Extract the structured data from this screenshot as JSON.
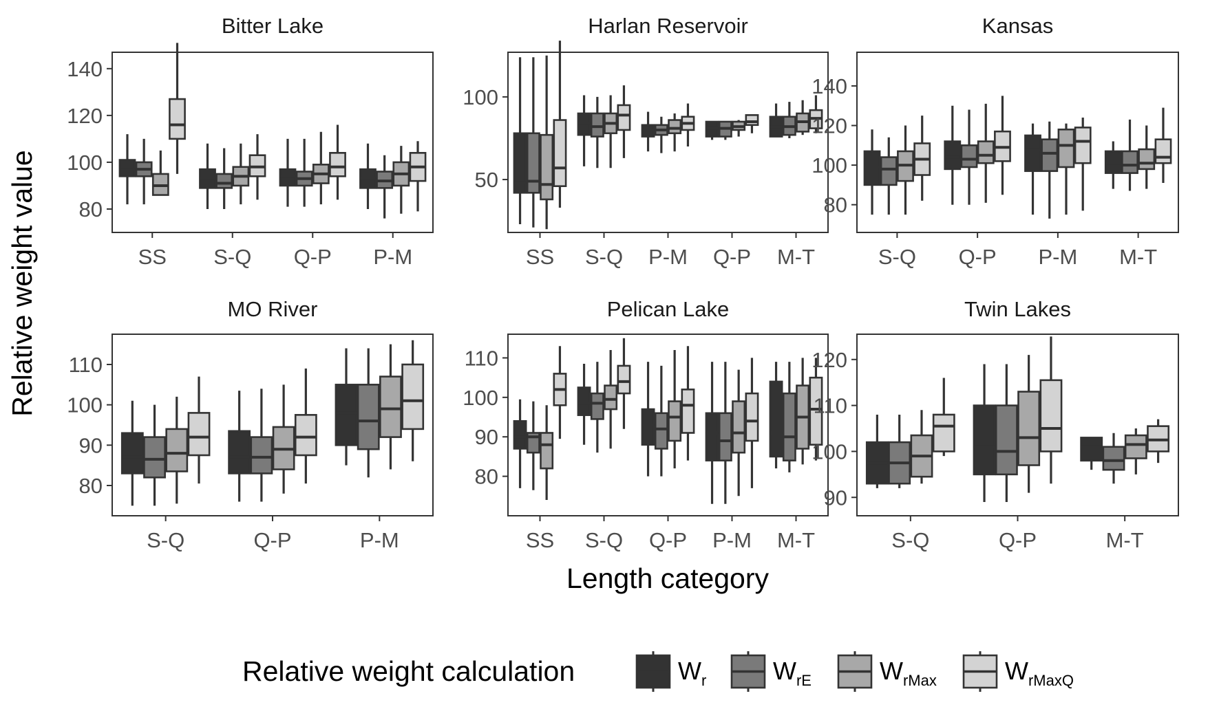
{
  "chart_data": {
    "type": "box",
    "ylabel": "Relative weight value",
    "xlabel": "Length category",
    "legend": {
      "title": "Relative weight calculation",
      "position": "bottom",
      "entries": [
        {
          "main": "W",
          "sub": "r",
          "color": "#333333"
        },
        {
          "main": "W",
          "sub": "rE",
          "color": "#7a7a7a"
        },
        {
          "main": "W",
          "sub": "rMax",
          "color": "#a8a8a8"
        },
        {
          "main": "W",
          "sub": "rMaxQ",
          "color": "#d3d3d3"
        }
      ]
    },
    "panels": [
      {
        "title": "Bitter Lake",
        "categories": [
          "SS",
          "S-Q",
          "Q-P",
          "P-M"
        ],
        "ylim": [
          70,
          147
        ],
        "yticks": [
          80,
          100,
          120,
          140
        ],
        "boxes": [
          [
            [
              82,
              94,
              97,
              101,
              112
            ],
            [
              82,
              94,
              97,
              100,
              110
            ],
            [
              86,
              86,
              90,
              95,
              105
            ],
            [
              95,
              110,
              116,
              127,
              151
            ]
          ],
          [
            [
              80,
              89,
              93,
              97,
              108
            ],
            [
              80,
              89,
              91,
              95,
              106
            ],
            [
              82,
              90,
              94,
              98,
              108
            ],
            [
              84,
              94,
              98,
              103,
              112
            ]
          ],
          [
            [
              81,
              90,
              94,
              97,
              110
            ],
            [
              81,
              90,
              93,
              96,
              110
            ],
            [
              82,
              91,
              95,
              99,
              113
            ],
            [
              84,
              94,
              98,
              104,
              116
            ]
          ],
          [
            [
              80,
              89,
              93,
              97,
              108
            ],
            [
              76,
              89,
              92,
              96,
              103
            ],
            [
              78,
              90,
              95,
              100,
              107
            ],
            [
              79,
              92,
              98,
              104,
              109
            ]
          ]
        ]
      },
      {
        "title": "Harlan Reservoir",
        "categories": [
          "SS",
          "S-Q",
          "P-M",
          "Q-P",
          "M-T"
        ],
        "ylim": [
          18,
          127
        ],
        "yticks": [
          50,
          100
        ],
        "boxes": [
          [
            [
              23,
              42,
              48,
              78,
              124
            ],
            [
              21,
              42,
              49,
              78,
              124
            ],
            [
              20,
              38,
              47,
              77,
              125
            ],
            [
              33,
              46,
              57,
              86,
              134
            ]
          ],
          [
            [
              58,
              77,
              84,
              90,
              101
            ],
            [
              57,
              76,
              82,
              90,
              100
            ],
            [
              57,
              78,
              84,
              90,
              101
            ],
            [
              63,
              80,
              89,
              95,
              107
            ]
          ],
          [
            [
              67,
              76,
              80,
              83,
              91
            ],
            [
              66,
              77,
              80,
              83,
              88
            ],
            [
              67,
              78,
              81,
              86,
              90
            ],
            [
              70,
              80,
              84,
              88,
              96
            ]
          ],
          [
            [
              74,
              76,
              81,
              85,
              85
            ],
            [
              74,
              76,
              81,
              85,
              85
            ],
            [
              76,
              80,
              82,
              85,
              86
            ],
            [
              78,
              83,
              85,
              89,
              89
            ]
          ],
          [
            [
              76,
              76,
              82,
              88,
              96
            ],
            [
              75,
              77,
              82,
              88,
              97
            ],
            [
              77,
              79,
              85,
              90,
              98
            ],
            [
              78,
              81,
              87,
              92,
              101
            ]
          ]
        ]
      },
      {
        "title": "Kansas",
        "categories": [
          "S-Q",
          "Q-P",
          "P-M",
          "M-T"
        ],
        "ylim": [
          66,
          157
        ],
        "yticks": [
          80,
          100,
          120,
          140
        ],
        "boxes": [
          [
            [
              75,
              90,
              99,
              107,
              118
            ],
            [
              75,
              90,
              98,
              104,
              114
            ],
            [
              75,
              92,
              100,
              107,
              120
            ],
            [
              82,
              95,
              103,
              111,
              125
            ]
          ],
          [
            [
              80,
              98,
              104,
              112,
              130
            ],
            [
              80,
              99,
              103,
              110,
              128
            ],
            [
              81,
              101,
              105,
              112,
              131
            ],
            [
              85,
              102,
              109,
              117,
              135
            ]
          ],
          [
            [
              75,
              97,
              108,
              115,
              121
            ],
            [
              73,
              97,
              106,
              113,
              122
            ],
            [
              75,
              99,
              110,
              118,
              121
            ],
            [
              77,
              101,
              112,
              119,
              124
            ]
          ],
          [
            [
              88,
              96,
              101,
              107,
              112
            ],
            [
              87,
              96,
              100,
              107,
              123
            ],
            [
              88,
              98,
              101,
              108,
              120
            ],
            [
              91,
              101,
              104,
              113,
              129
            ]
          ]
        ]
      },
      {
        "title": "MO River",
        "categories": [
          "S-Q",
          "Q-P",
          "P-M"
        ],
        "ylim": [
          72.5,
          117.5
        ],
        "yticks": [
          80,
          90,
          100,
          110
        ],
        "boxes": [
          [
            [
              75,
              83,
              87,
              93,
              101
            ],
            [
              75,
              82,
              86.5,
              92,
              100
            ],
            [
              75.5,
              83.5,
              88,
              94,
              102
            ],
            [
              80.5,
              87.5,
              92,
              98,
              107
            ]
          ],
          [
            [
              76,
              83,
              87,
              93.5,
              103.5
            ],
            [
              76,
              83,
              87,
              92,
              104
            ],
            [
              78,
              84,
              89,
              94.5,
              105
            ],
            [
              80.5,
              87.5,
              92,
              97.5,
              109
            ]
          ],
          [
            [
              85,
              90,
              98,
              105,
              114
            ],
            [
              82,
              89,
              96,
              105,
              114
            ],
            [
              84,
              92,
              99,
              107,
              115
            ],
            [
              86,
              94,
              101,
              110,
              116
            ]
          ]
        ]
      },
      {
        "title": "Pelican Lake",
        "categories": [
          "SS",
          "S-Q",
          "Q-P",
          "P-M",
          "M-T"
        ],
        "ylim": [
          70,
          116
        ],
        "yticks": [
          80,
          90,
          100,
          110
        ],
        "boxes": [
          [
            [
              77,
              87,
              90,
              94,
              99.5
            ],
            [
              76.5,
              86,
              90,
              91,
              99
            ],
            [
              74,
              82,
              88,
              91,
              98
            ],
            [
              89.5,
              98,
              102,
              106,
              113
            ]
          ],
          [
            [
              88,
              95.5,
              98.5,
              102.5,
              108.5
            ],
            [
              86,
              94.5,
              98.5,
              101,
              109
            ],
            [
              87,
              97,
              99.5,
              103,
              112
            ],
            [
              92,
              101,
              104,
              108,
              115
            ]
          ],
          [
            [
              80,
              88,
              93,
              97,
              109
            ],
            [
              80,
              87,
              92,
              96,
              108
            ],
            [
              82,
              89,
              95,
              99,
              112
            ],
            [
              84,
              91,
              98,
              102,
              113
            ]
          ],
          [
            [
              73,
              84,
              91,
              96,
              109
            ],
            [
              73,
              84,
              89,
              96,
              109
            ],
            [
              75,
              86,
              91,
              99,
              107
            ],
            [
              77,
              89,
              94,
              101,
              110
            ]
          ],
          [
            [
              82,
              85,
              91,
              104,
              109
            ],
            [
              81,
              84,
              90,
              101,
              109
            ],
            [
              83,
              87,
              95,
              103,
              110
            ],
            [
              84,
              88,
              97,
              105,
              110
            ]
          ]
        ]
      },
      {
        "title": "Twin Lakes",
        "categories": [
          "S-Q",
          "Q-P",
          "M-T"
        ],
        "ylim": [
          86,
          125.5
        ],
        "yticks": [
          90,
          100,
          110,
          120
        ],
        "boxes": [
          [
            [
              92,
              93,
              97.5,
              102,
              108
            ],
            [
              92,
              93,
              97.5,
              102,
              108
            ],
            [
              93,
              94.5,
              99,
              103.5,
              109
            ],
            [
              99,
              100,
              105.5,
              108,
              116
            ]
          ],
          [
            [
              89,
              95,
              101,
              110,
              119
            ],
            [
              89,
              95,
              100,
              110,
              119
            ],
            [
              91,
              97,
              103,
              113,
              121
            ],
            [
              93,
              100,
              105,
              115.5,
              125
            ]
          ],
          [
            [
              96,
              98,
              101,
              103,
              103
            ],
            [
              93,
              96,
              98,
              101,
              104
            ],
            [
              95,
              98.5,
              101.5,
              103.5,
              105
            ],
            [
              97.5,
              100,
              102.5,
              105.5,
              107
            ]
          ]
        ]
      }
    ]
  }
}
